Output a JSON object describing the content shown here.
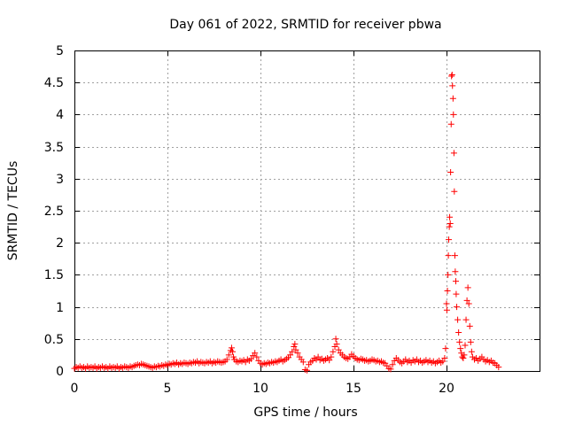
{
  "chart_data": {
    "type": "scatter",
    "title": "Day 061 of 2022, SRMTID for receiver pbwa",
    "xlabel": "GPS time / hours",
    "ylabel": "SRMTID / TECUs",
    "xlim": [
      0,
      25
    ],
    "ylim": [
      0,
      5
    ],
    "x_ticks": [
      0,
      5,
      10,
      15,
      20
    ],
    "x_tick_labels": [
      "0",
      "5",
      "10",
      "15",
      "20"
    ],
    "y_ticks": [
      0,
      0.5,
      1,
      1.5,
      2,
      2.5,
      3,
      3.5,
      4,
      4.5,
      5
    ],
    "y_tick_labels": [
      "0",
      "0.5",
      "1",
      "1.5",
      "2",
      "2.5",
      "3",
      "3.5",
      "4",
      "4.5",
      "5"
    ],
    "grid": true,
    "marker": "plus",
    "color": "#ff0000",
    "series": [
      {
        "name": "pbwa",
        "points": [
          [
            0.0,
            0.04
          ],
          [
            0.1,
            0.06
          ],
          [
            0.2,
            0.05
          ],
          [
            0.3,
            0.07
          ],
          [
            0.4,
            0.05
          ],
          [
            0.5,
            0.06
          ],
          [
            0.6,
            0.04
          ],
          [
            0.7,
            0.07
          ],
          [
            0.8,
            0.05
          ],
          [
            0.9,
            0.06
          ],
          [
            1.0,
            0.05
          ],
          [
            1.1,
            0.07
          ],
          [
            1.2,
            0.04
          ],
          [
            1.3,
            0.06
          ],
          [
            1.4,
            0.05
          ],
          [
            1.5,
            0.07
          ],
          [
            1.6,
            0.05
          ],
          [
            1.7,
            0.06
          ],
          [
            1.8,
            0.04
          ],
          [
            1.9,
            0.07
          ],
          [
            2.0,
            0.05
          ],
          [
            2.1,
            0.06
          ],
          [
            2.2,
            0.05
          ],
          [
            2.3,
            0.07
          ],
          [
            2.4,
            0.04
          ],
          [
            2.5,
            0.06
          ],
          [
            2.6,
            0.05
          ],
          [
            2.7,
            0.07
          ],
          [
            2.8,
            0.06
          ],
          [
            2.9,
            0.05
          ],
          [
            3.0,
            0.07
          ],
          [
            3.1,
            0.06
          ],
          [
            3.2,
            0.08
          ],
          [
            3.3,
            0.09
          ],
          [
            3.4,
            0.1
          ],
          [
            3.5,
            0.09
          ],
          [
            3.6,
            0.11
          ],
          [
            3.7,
            0.1
          ],
          [
            3.8,
            0.09
          ],
          [
            3.9,
            0.08
          ],
          [
            4.0,
            0.07
          ],
          [
            4.1,
            0.06
          ],
          [
            4.2,
            0.05
          ],
          [
            4.3,
            0.07
          ],
          [
            4.4,
            0.06
          ],
          [
            4.5,
            0.08
          ],
          [
            4.6,
            0.07
          ],
          [
            4.7,
            0.09
          ],
          [
            4.8,
            0.08
          ],
          [
            4.9,
            0.1
          ],
          [
            5.0,
            0.09
          ],
          [
            5.1,
            0.11
          ],
          [
            5.2,
            0.1
          ],
          [
            5.3,
            0.12
          ],
          [
            5.4,
            0.11
          ],
          [
            5.5,
            0.13
          ],
          [
            5.6,
            0.1
          ],
          [
            5.7,
            0.12
          ],
          [
            5.8,
            0.11
          ],
          [
            5.9,
            0.13
          ],
          [
            6.0,
            0.12
          ],
          [
            6.1,
            0.11
          ],
          [
            6.2,
            0.13
          ],
          [
            6.3,
            0.12
          ],
          [
            6.4,
            0.14
          ],
          [
            6.5,
            0.13
          ],
          [
            6.6,
            0.15
          ],
          [
            6.7,
            0.12
          ],
          [
            6.8,
            0.14
          ],
          [
            6.9,
            0.13
          ],
          [
            7.0,
            0.12
          ],
          [
            7.1,
            0.14
          ],
          [
            7.2,
            0.13
          ],
          [
            7.3,
            0.15
          ],
          [
            7.4,
            0.12
          ],
          [
            7.5,
            0.14
          ],
          [
            7.6,
            0.13
          ],
          [
            7.7,
            0.15
          ],
          [
            7.8,
            0.14
          ],
          [
            7.9,
            0.13
          ],
          [
            8.0,
            0.14
          ],
          [
            8.1,
            0.15
          ],
          [
            8.2,
            0.18
          ],
          [
            8.3,
            0.25
          ],
          [
            8.4,
            0.32
          ],
          [
            8.45,
            0.36
          ],
          [
            8.5,
            0.3
          ],
          [
            8.55,
            0.22
          ],
          [
            8.6,
            0.18
          ],
          [
            8.7,
            0.15
          ],
          [
            8.8,
            0.14
          ],
          [
            8.9,
            0.16
          ],
          [
            9.0,
            0.15
          ],
          [
            9.1,
            0.17
          ],
          [
            9.2,
            0.14
          ],
          [
            9.3,
            0.18
          ],
          [
            9.4,
            0.16
          ],
          [
            9.5,
            0.19
          ],
          [
            9.6,
            0.24
          ],
          [
            9.7,
            0.28
          ],
          [
            9.8,
            0.22
          ],
          [
            9.9,
            0.16
          ],
          [
            10.0,
            0.12
          ],
          [
            10.1,
            0.1
          ],
          [
            10.2,
            0.12
          ],
          [
            10.3,
            0.11
          ],
          [
            10.4,
            0.13
          ],
          [
            10.5,
            0.12
          ],
          [
            10.6,
            0.14
          ],
          [
            10.7,
            0.13
          ],
          [
            10.8,
            0.15
          ],
          [
            10.9,
            0.14
          ],
          [
            11.0,
            0.16
          ],
          [
            11.1,
            0.18
          ],
          [
            11.2,
            0.15
          ],
          [
            11.3,
            0.17
          ],
          [
            11.4,
            0.19
          ],
          [
            11.5,
            0.21
          ],
          [
            11.6,
            0.25
          ],
          [
            11.7,
            0.3
          ],
          [
            11.8,
            0.38
          ],
          [
            11.85,
            0.42
          ],
          [
            11.9,
            0.33
          ],
          [
            12.0,
            0.28
          ],
          [
            12.1,
            0.22
          ],
          [
            12.2,
            0.18
          ],
          [
            12.3,
            0.14
          ],
          [
            12.4,
            0.02
          ],
          [
            12.5,
            0.01
          ],
          [
            12.6,
            0.1
          ],
          [
            12.7,
            0.14
          ],
          [
            12.8,
            0.16
          ],
          [
            12.9,
            0.2
          ],
          [
            13.0,
            0.18
          ],
          [
            13.1,
            0.22
          ],
          [
            13.2,
            0.17
          ],
          [
            13.3,
            0.19
          ],
          [
            13.4,
            0.16
          ],
          [
            13.5,
            0.18
          ],
          [
            13.6,
            0.2
          ],
          [
            13.7,
            0.17
          ],
          [
            13.8,
            0.22
          ],
          [
            13.9,
            0.3
          ],
          [
            14.0,
            0.38
          ],
          [
            14.05,
            0.5
          ],
          [
            14.1,
            0.42
          ],
          [
            14.2,
            0.33
          ],
          [
            14.3,
            0.28
          ],
          [
            14.4,
            0.25
          ],
          [
            14.5,
            0.22
          ],
          [
            14.6,
            0.2
          ],
          [
            14.7,
            0.19
          ],
          [
            14.8,
            0.22
          ],
          [
            14.9,
            0.26
          ],
          [
            15.0,
            0.23
          ],
          [
            15.1,
            0.2
          ],
          [
            15.2,
            0.18
          ],
          [
            15.3,
            0.17
          ],
          [
            15.4,
            0.19
          ],
          [
            15.5,
            0.18
          ],
          [
            15.6,
            0.16
          ],
          [
            15.7,
            0.17
          ],
          [
            15.8,
            0.15
          ],
          [
            15.9,
            0.16
          ],
          [
            16.0,
            0.18
          ],
          [
            16.1,
            0.17
          ],
          [
            16.2,
            0.15
          ],
          [
            16.3,
            0.16
          ],
          [
            16.4,
            0.14
          ],
          [
            16.5,
            0.15
          ],
          [
            16.6,
            0.13
          ],
          [
            16.7,
            0.12
          ],
          [
            16.8,
            0.08
          ],
          [
            16.9,
            0.04
          ],
          [
            17.0,
            0.03
          ],
          [
            17.1,
            0.1
          ],
          [
            17.2,
            0.16
          ],
          [
            17.3,
            0.2
          ],
          [
            17.4,
            0.17
          ],
          [
            17.5,
            0.14
          ],
          [
            17.6,
            0.12
          ],
          [
            17.7,
            0.15
          ],
          [
            17.8,
            0.18
          ],
          [
            17.9,
            0.14
          ],
          [
            18.0,
            0.16
          ],
          [
            18.1,
            0.13
          ],
          [
            18.2,
            0.17
          ],
          [
            18.3,
            0.15
          ],
          [
            18.4,
            0.18
          ],
          [
            18.5,
            0.14
          ],
          [
            18.6,
            0.16
          ],
          [
            18.7,
            0.13
          ],
          [
            18.8,
            0.15
          ],
          [
            18.9,
            0.17
          ],
          [
            19.0,
            0.14
          ],
          [
            19.1,
            0.16
          ],
          [
            19.2,
            0.13
          ],
          [
            19.3,
            0.15
          ],
          [
            19.4,
            0.12
          ],
          [
            19.5,
            0.14
          ],
          [
            19.6,
            0.16
          ],
          [
            19.7,
            0.13
          ],
          [
            19.8,
            0.15
          ],
          [
            19.9,
            0.2
          ],
          [
            19.95,
            0.35
          ],
          [
            20.0,
            1.05
          ],
          [
            20.02,
            0.95
          ],
          [
            20.05,
            1.25
          ],
          [
            20.08,
            1.5
          ],
          [
            20.1,
            1.8
          ],
          [
            20.12,
            2.05
          ],
          [
            20.15,
            2.25
          ],
          [
            20.17,
            2.4
          ],
          [
            20.2,
            2.3
          ],
          [
            20.22,
            3.1
          ],
          [
            20.25,
            3.85
          ],
          [
            20.27,
            4.6
          ],
          [
            20.3,
            4.62
          ],
          [
            20.32,
            4.45
          ],
          [
            20.35,
            4.25
          ],
          [
            20.37,
            4.0
          ],
          [
            20.4,
            3.4
          ],
          [
            20.42,
            2.8
          ],
          [
            20.45,
            1.8
          ],
          [
            20.47,
            1.55
          ],
          [
            20.5,
            1.4
          ],
          [
            20.52,
            1.2
          ],
          [
            20.55,
            1.0
          ],
          [
            20.6,
            0.8
          ],
          [
            20.65,
            0.6
          ],
          [
            20.7,
            0.45
          ],
          [
            20.75,
            0.35
          ],
          [
            20.8,
            0.28
          ],
          [
            20.85,
            0.22
          ],
          [
            20.9,
            0.2
          ],
          [
            20.95,
            0.25
          ],
          [
            21.0,
            0.4
          ],
          [
            21.05,
            0.8
          ],
          [
            21.1,
            1.1
          ],
          [
            21.15,
            1.3
          ],
          [
            21.2,
            1.05
          ],
          [
            21.25,
            0.7
          ],
          [
            21.3,
            0.45
          ],
          [
            21.35,
            0.3
          ],
          [
            21.4,
            0.22
          ],
          [
            21.5,
            0.18
          ],
          [
            21.6,
            0.2
          ],
          [
            21.7,
            0.16
          ],
          [
            21.8,
            0.19
          ],
          [
            21.9,
            0.22
          ],
          [
            22.0,
            0.18
          ],
          [
            22.1,
            0.15
          ],
          [
            22.2,
            0.17
          ],
          [
            22.3,
            0.14
          ],
          [
            22.4,
            0.16
          ],
          [
            22.5,
            0.13
          ],
          [
            22.6,
            0.12
          ],
          [
            22.7,
            0.09
          ],
          [
            22.8,
            0.06
          ]
        ]
      }
    ]
  }
}
